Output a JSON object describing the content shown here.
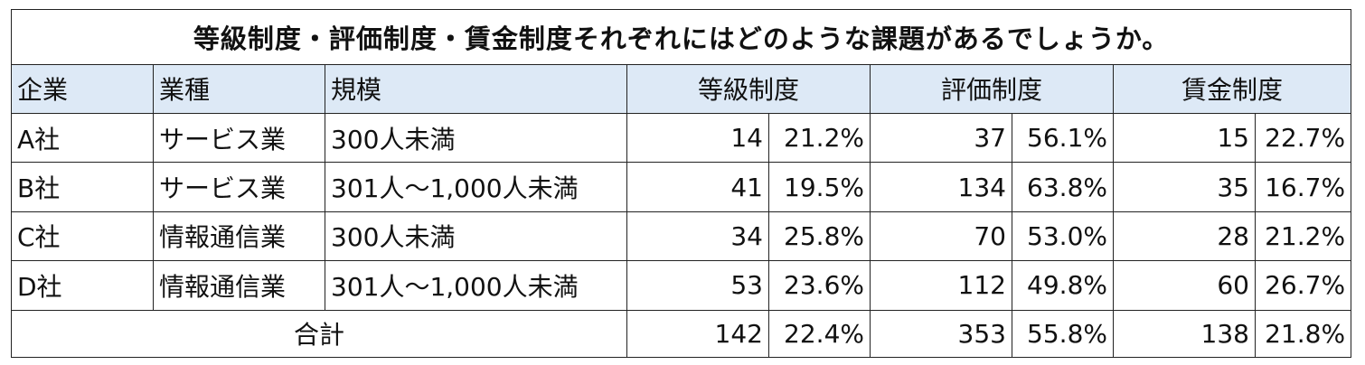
{
  "title": "等級制度・評価制度・賃金制度それぞれにはどのような課題があるでしょうか。",
  "headers": {
    "company": "企業",
    "industry": "業種",
    "size": "規模",
    "grade": "等級制度",
    "evaluation": "評価制度",
    "wage": "賃金制度"
  },
  "rows": [
    {
      "company": "A社",
      "industry": "サービス業",
      "size": "300人未満",
      "grade_n": "14",
      "grade_pct": "21.2%",
      "eval_n": "37",
      "eval_pct": "56.1%",
      "wage_n": "15",
      "wage_pct": "22.7%"
    },
    {
      "company": "B社",
      "industry": "サービス業",
      "size": "301人～1,000人未満",
      "grade_n": "41",
      "grade_pct": "19.5%",
      "eval_n": "134",
      "eval_pct": "63.8%",
      "wage_n": "35",
      "wage_pct": "16.7%"
    },
    {
      "company": "C社",
      "industry": "情報通信業",
      "size": "300人未満",
      "grade_n": "34",
      "grade_pct": "25.8%",
      "eval_n": "70",
      "eval_pct": "53.0%",
      "wage_n": "28",
      "wage_pct": "21.2%"
    },
    {
      "company": "D社",
      "industry": "情報通信業",
      "size": "301人～1,000人未満",
      "grade_n": "53",
      "grade_pct": "23.6%",
      "eval_n": "112",
      "eval_pct": "49.8%",
      "wage_n": "60",
      "wage_pct": "26.7%"
    }
  ],
  "total": {
    "label": "合計",
    "grade_n": "142",
    "grade_pct": "22.4%",
    "eval_n": "353",
    "eval_pct": "55.8%",
    "wage_n": "138",
    "wage_pct": "21.8%"
  },
  "colors": {
    "header_bg": "#dde9f6",
    "border": "#222222"
  }
}
